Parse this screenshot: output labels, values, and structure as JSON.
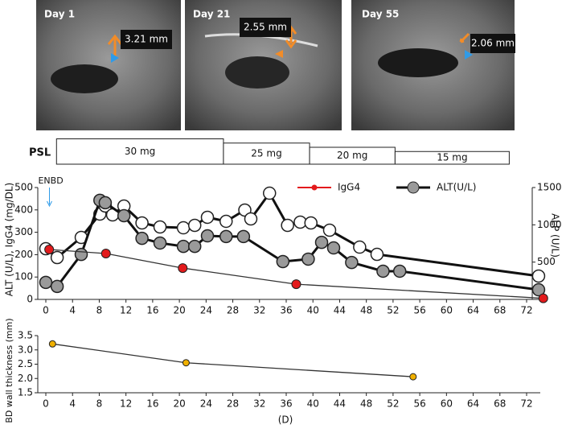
{
  "images": [
    {
      "label": "Day 1",
      "measurement": "3.21 mm"
    },
    {
      "label": "Day 21",
      "measurement": "2.55 mm"
    },
    {
      "label": "Day 55",
      "measurement": "2.06 mm"
    }
  ],
  "psl": {
    "label": "PSL",
    "segments": [
      {
        "label": "30 mg",
        "dose": 30,
        "start": 1.6,
        "end": 26.6
      },
      {
        "label": "25 mg",
        "dose": 25,
        "start": 26.6,
        "end": 39.5
      },
      {
        "label": "20 mg",
        "dose": 20,
        "start": 39.5,
        "end": 52.3
      },
      {
        "label": "15 mg",
        "dose": 15,
        "start": 52.3,
        "end": 69.4
      }
    ]
  },
  "chart_data": [
    {
      "type": "line",
      "ylabel": "ALT (U/L), IgG4 (mg/DL)",
      "y2label": "ALP (U/L)",
      "annotation": {
        "text": "ENBD",
        "x": 0.3
      },
      "xlim": [
        0,
        75
      ],
      "xticks": [
        0,
        4,
        8,
        12,
        16,
        20,
        24,
        28,
        32,
        36,
        40,
        44,
        48,
        52,
        56,
        60,
        64,
        68,
        72
      ],
      "ylim": [
        0,
        500
      ],
      "yticks": [
        0,
        100,
        200,
        300,
        400,
        500
      ],
      "y2lim": [
        0,
        1500
      ],
      "y2ticks": [
        500,
        1000,
        1500
      ],
      "series": [
        {
          "axis": "y2",
          "color": "#ffffff",
          "line_color": "#111111",
          "x": [
            0,
            1.7,
            5.3,
            8.1,
            8.9,
            10,
            11.7,
            14.4,
            17.1,
            20.6,
            22.3,
            24.2,
            27,
            29.8,
            30.7,
            33.5,
            36.2,
            38.1,
            39.7,
            42.5,
            47,
            49.6,
            73.8
          ],
          "values": [
            680,
            561,
            831,
            1144,
            1252,
            1133,
            1252,
            1025,
            971,
            960,
            993,
            1101,
            1047,
            1198,
            1079,
            1424,
            993,
            1036,
            1025,
            928,
            701,
            604,
            313
          ]
        },
        {
          "name": "ALT(U/L)",
          "color": "#9a9a9a",
          "line_color": "#111111",
          "x": [
            0,
            1.7,
            5.3,
            8.1,
            8.9,
            11.7,
            14.4,
            17.1,
            20.6,
            22.3,
            24.2,
            27,
            29.6,
            35.5,
            39.3,
            41.3,
            43.1,
            45.8,
            50.5,
            53,
            73.8
          ],
          "values": [
            76,
            58,
            201,
            443,
            432,
            374,
            273,
            252,
            237,
            237,
            284,
            281,
            281,
            169,
            180,
            255,
            230,
            165,
            126,
            126,
            43
          ]
        },
        {
          "name": "IgG4",
          "color": "#e31a1c",
          "line_color": "#333333",
          "x": [
            0.5,
            9,
            20.5,
            37.5,
            74.5
          ],
          "values": [
            223,
            205,
            140,
            68,
            5
          ]
        }
      ]
    },
    {
      "type": "line",
      "ylabel": "BD wall thickness (mm)",
      "xlabel": "(D)",
      "xlim": [
        0,
        75
      ],
      "xticks": [
        0,
        4,
        8,
        12,
        16,
        20,
        24,
        28,
        32,
        36,
        40,
        44,
        48,
        52,
        56,
        60,
        64,
        68,
        72
      ],
      "ylim": [
        1.5,
        3.5
      ],
      "yticks": [
        1.5,
        {
          "value": 2,
          "label": "2.0"
        },
        2.5,
        {
          "value": 3,
          "label": "3.0"
        },
        3.5
      ],
      "series": [
        {
          "color": "#f0b000",
          "line_color": "#333333",
          "x": [
            1,
            21,
            55
          ],
          "values": [
            3.21,
            2.55,
            2.06
          ]
        }
      ]
    }
  ]
}
